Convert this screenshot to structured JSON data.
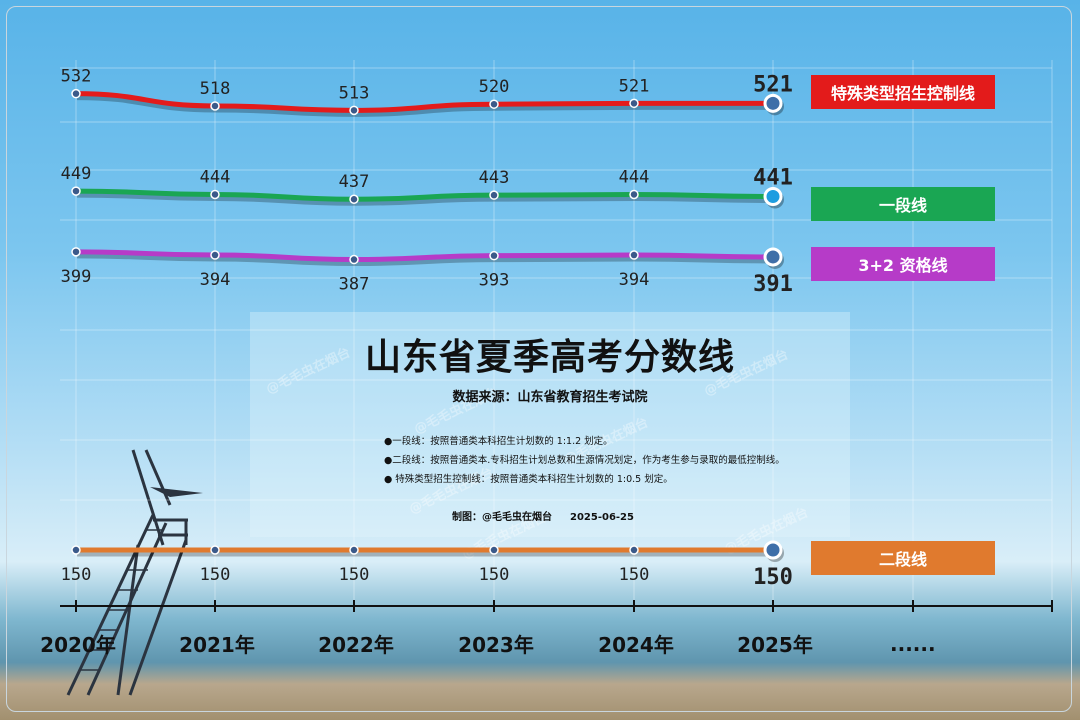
{
  "colors": {
    "special": "#e31b1b",
    "tier1": "#1aa653",
    "qualify": "#b63bc8",
    "tier2": "#e07a2e"
  },
  "header": {
    "title": "山东省夏季高考分数线",
    "source": "数据来源：山东省教育招生考试院"
  },
  "notes": [
    "●一段线：按照普通类本科招生计划数的 1:1.2 划定。",
    "●二段线：按照普通类本.专科招生计划总数和生源情况划定，作为考生参与录取的最低控制线。",
    "● 特殊类型招生控制线：按照普通类本科招生计划数的 1:0.5 划定。"
  ],
  "credit": {
    "author": "制图：@毛毛虫在烟台",
    "date": "2025-06-25"
  },
  "watermark_text": "@毛毛虫在烟台",
  "chart_data": {
    "type": "line",
    "categories": [
      "2020年",
      "2021年",
      "2022年",
      "2023年",
      "2024年",
      "2025年"
    ],
    "extra_category_label": "......",
    "series": [
      {
        "name": "特殊类型招生控制线",
        "values": [
          532,
          518,
          513,
          520,
          521,
          521
        ]
      },
      {
        "name": "一段线",
        "values": [
          449,
          444,
          437,
          443,
          444,
          441
        ]
      },
      {
        "name": "3+2 资格线",
        "values": [
          399,
          394,
          387,
          393,
          394,
          391
        ]
      },
      {
        "name": "二段线",
        "values": [
          150,
          150,
          150,
          150,
          150,
          150
        ]
      }
    ],
    "legend_placement": "right",
    "grid": true
  }
}
